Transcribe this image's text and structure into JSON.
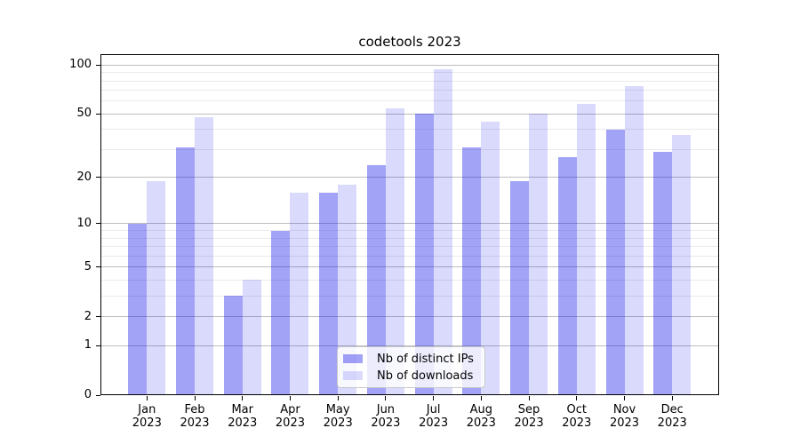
{
  "chart_data": {
    "type": "bar",
    "title": "codetools 2023",
    "categories": [
      "Jan 2023",
      "Feb 2023",
      "Mar 2023",
      "Apr 2023",
      "May 2023",
      "Jun 2023",
      "Jul 2023",
      "Aug 2023",
      "Sep 2023",
      "Oct 2023",
      "Nov 2023",
      "Dec 2023"
    ],
    "series": [
      {
        "name": "Nb of distinct IPs",
        "color": "rgba(10,10,232,0.38)",
        "values": [
          10,
          31,
          3,
          9,
          16,
          24,
          50,
          31,
          19,
          27,
          40,
          29
        ]
      },
      {
        "name": "Nb of downloads",
        "color": "rgba(10,10,232,0.15)",
        "values": [
          19,
          48,
          4,
          16,
          18,
          54,
          94,
          45,
          50,
          58,
          74,
          37
        ]
      }
    ],
    "xlabel": "",
    "ylabel": "",
    "y_scale": "log1p",
    "y_major_ticks": [
      0,
      1,
      2,
      5,
      10,
      20,
      50,
      100
    ],
    "y_minor_gridlines": [
      3,
      4,
      6,
      7,
      8,
      9,
      30,
      40,
      60,
      70,
      80,
      90
    ],
    "ylim": [
      0,
      117
    ],
    "grid": true,
    "legend_position": "lower center"
  },
  "colors": {
    "bar_distinct_ips_effective": "#a4a4f4",
    "bar_downloads_effective": "#dcdcfb",
    "grid_major": "#bdbdbd",
    "grid_minor": "#eaeaea",
    "axis": "#000000",
    "legend_border": "#c9c9c9"
  }
}
